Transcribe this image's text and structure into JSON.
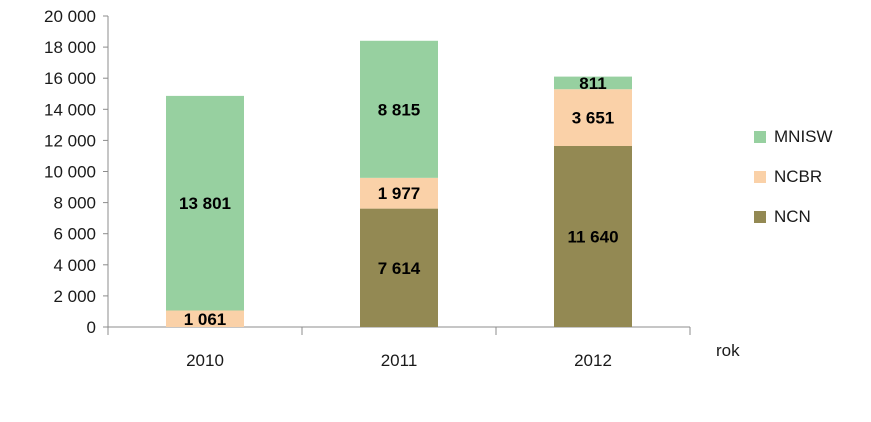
{
  "chart_data": {
    "type": "bar",
    "stacked": true,
    "categories": [
      "2010",
      "2011",
      "2012"
    ],
    "xlabel": "rok",
    "ylabel": "",
    "ylim": [
      0,
      20000
    ],
    "yticks": [
      0,
      2000,
      4000,
      6000,
      8000,
      10000,
      12000,
      14000,
      16000,
      18000,
      20000
    ],
    "ytick_labels": [
      "0",
      "2 000",
      "4 000",
      "6 000",
      "8 000",
      "10 000",
      "12 000",
      "14 000",
      "16 000",
      "18 000",
      "20 000"
    ],
    "grid": false,
    "legend_position": "right",
    "series": [
      {
        "name": "NCN",
        "color": "#938953",
        "values": [
          0,
          7614,
          11640
        ],
        "labels": [
          "",
          "7 614",
          "11 640"
        ]
      },
      {
        "name": "NCBR",
        "color": "#fad1a8",
        "values": [
          1061,
          1977,
          3651
        ],
        "labels": [
          "1 061",
          "1 977",
          "3 651"
        ]
      },
      {
        "name": "MNISW",
        "color": "#97d0a0",
        "values": [
          13801,
          8815,
          811
        ],
        "labels": [
          "13 801",
          "8 815",
          "811"
        ]
      }
    ],
    "legend_order": [
      "MNISW",
      "NCBR",
      "NCN"
    ]
  }
}
